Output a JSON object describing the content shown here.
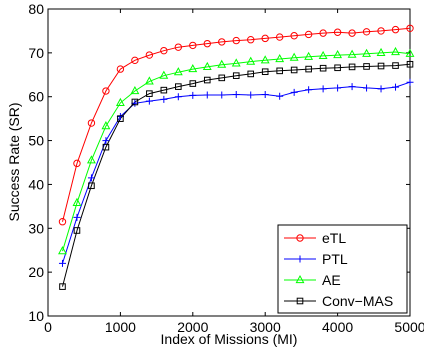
{
  "chart_data": {
    "type": "line",
    "title": "",
    "xlabel": "Index of Missions (MI)",
    "ylabel": "Success Rate (SR)",
    "xlim": [
      0,
      5000
    ],
    "ylim": [
      10,
      80
    ],
    "xticks": [
      0,
      1000,
      2000,
      3000,
      4000,
      5000
    ],
    "yticks": [
      10,
      20,
      30,
      40,
      50,
      60,
      70,
      80
    ],
    "grid": false,
    "legend_position": "bottom-right",
    "x": [
      200,
      400,
      600,
      800,
      1000,
      1200,
      1400,
      1600,
      1800,
      2000,
      2200,
      2400,
      2600,
      2800,
      3000,
      3200,
      3400,
      3600,
      3800,
      4000,
      4200,
      4400,
      4600,
      4800,
      5000
    ],
    "series": [
      {
        "name": "eTL",
        "color": "#ff0000",
        "marker": "circle",
        "values": [
          31.5,
          44.8,
          54.0,
          61.3,
          66.3,
          68.3,
          69.5,
          70.5,
          71.3,
          71.7,
          72.1,
          72.5,
          72.8,
          73.0,
          73.3,
          73.6,
          73.9,
          74.2,
          74.5,
          74.7,
          74.5,
          74.8,
          75.0,
          75.3,
          75.6
        ]
      },
      {
        "name": "PTL",
        "color": "#0000ff",
        "marker": "plus",
        "values": [
          22.0,
          32.5,
          41.5,
          50.0,
          55.5,
          58.5,
          59.0,
          59.4,
          60.0,
          60.3,
          60.4,
          60.4,
          60.5,
          60.4,
          60.5,
          60.1,
          61.0,
          61.6,
          61.8,
          62.0,
          62.3,
          62.0,
          61.8,
          62.2,
          63.3
        ]
      },
      {
        "name": "AE",
        "color": "#00ff00",
        "marker": "triangle",
        "values": [
          24.8,
          35.8,
          45.5,
          53.3,
          58.6,
          61.3,
          63.5,
          64.8,
          65.6,
          66.3,
          66.8,
          67.3,
          67.6,
          68.0,
          68.3,
          68.6,
          68.9,
          69.1,
          69.3,
          69.5,
          69.6,
          69.8,
          70.0,
          70.2,
          69.8
        ]
      },
      {
        "name": "Conv−MAS",
        "color": "#000000",
        "marker": "square",
        "values": [
          16.7,
          29.5,
          39.7,
          48.5,
          55.0,
          58.8,
          60.7,
          61.5,
          62.3,
          63.0,
          63.8,
          64.3,
          64.8,
          65.2,
          65.7,
          65.9,
          66.1,
          66.3,
          66.5,
          66.6,
          66.8,
          66.9,
          67.0,
          67.1,
          67.4
        ]
      }
    ]
  }
}
